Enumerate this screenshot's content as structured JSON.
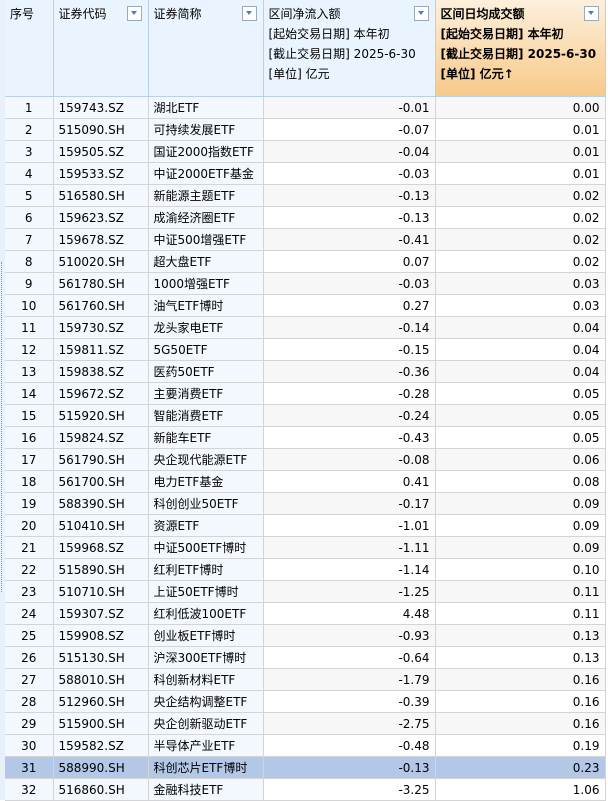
{
  "headers": {
    "seq": "序号",
    "code": "证券代码",
    "name": "证券简称",
    "inflow": [
      "区间净流入额",
      "[起始交易日期] 本年初",
      "[截止交易日期] 2025-6-30",
      "[单位] 亿元"
    ],
    "avg_turnover": [
      "区间日均成交额",
      "[起始交易日期] 本年初",
      "[截止交易日期] 2025-6-30",
      "[单位] 亿元↑"
    ]
  },
  "selected_row": 31,
  "colors": {
    "selected": "#b3c7e6",
    "sorted_header": "#f8c98a"
  },
  "rows": [
    {
      "seq": "1",
      "code": "159743.SZ",
      "name": "湖北ETF",
      "inflow": "-0.01",
      "avg": "0.00"
    },
    {
      "seq": "2",
      "code": "515090.SH",
      "name": "可持续发展ETF",
      "inflow": "-0.07",
      "avg": "0.01"
    },
    {
      "seq": "3",
      "code": "159505.SZ",
      "name": "国证2000指数ETF",
      "inflow": "-0.04",
      "avg": "0.01"
    },
    {
      "seq": "4",
      "code": "159533.SZ",
      "name": "中证2000ETF基金",
      "inflow": "-0.03",
      "avg": "0.01"
    },
    {
      "seq": "5",
      "code": "516580.SH",
      "name": "新能源主题ETF",
      "inflow": "-0.13",
      "avg": "0.02"
    },
    {
      "seq": "6",
      "code": "159623.SZ",
      "name": "成渝经济圈ETF",
      "inflow": "-0.13",
      "avg": "0.02"
    },
    {
      "seq": "7",
      "code": "159678.SZ",
      "name": "中证500增强ETF",
      "inflow": "-0.41",
      "avg": "0.02"
    },
    {
      "seq": "8",
      "code": "510020.SH",
      "name": "超大盘ETF",
      "inflow": "0.07",
      "avg": "0.02"
    },
    {
      "seq": "9",
      "code": "561780.SH",
      "name": "1000增强ETF",
      "inflow": "-0.03",
      "avg": "0.03"
    },
    {
      "seq": "10",
      "code": "561760.SH",
      "name": "油气ETF博时",
      "inflow": "0.27",
      "avg": "0.03"
    },
    {
      "seq": "11",
      "code": "159730.SZ",
      "name": "龙头家电ETF",
      "inflow": "-0.14",
      "avg": "0.04"
    },
    {
      "seq": "12",
      "code": "159811.SZ",
      "name": "5G50ETF",
      "inflow": "-0.15",
      "avg": "0.04"
    },
    {
      "seq": "13",
      "code": "159838.SZ",
      "name": "医药50ETF",
      "inflow": "-0.36",
      "avg": "0.04"
    },
    {
      "seq": "14",
      "code": "159672.SZ",
      "name": "主要消费ETF",
      "inflow": "-0.28",
      "avg": "0.05"
    },
    {
      "seq": "15",
      "code": "515920.SH",
      "name": "智能消费ETF",
      "inflow": "-0.24",
      "avg": "0.05"
    },
    {
      "seq": "16",
      "code": "159824.SZ",
      "name": "新能车ETF",
      "inflow": "-0.43",
      "avg": "0.05"
    },
    {
      "seq": "17",
      "code": "561790.SH",
      "name": "央企现代能源ETF",
      "inflow": "-0.08",
      "avg": "0.06"
    },
    {
      "seq": "18",
      "code": "561700.SH",
      "name": "电力ETF基金",
      "inflow": "0.41",
      "avg": "0.08"
    },
    {
      "seq": "19",
      "code": "588390.SH",
      "name": "科创创业50ETF",
      "inflow": "-0.17",
      "avg": "0.09"
    },
    {
      "seq": "20",
      "code": "510410.SH",
      "name": "资源ETF",
      "inflow": "-1.01",
      "avg": "0.09"
    },
    {
      "seq": "21",
      "code": "159968.SZ",
      "name": "中证500ETF博时",
      "inflow": "-1.11",
      "avg": "0.09"
    },
    {
      "seq": "22",
      "code": "515890.SH",
      "name": "红利ETF博时",
      "inflow": "-1.14",
      "avg": "0.10"
    },
    {
      "seq": "23",
      "code": "510710.SH",
      "name": "上证50ETF博时",
      "inflow": "-1.25",
      "avg": "0.11"
    },
    {
      "seq": "24",
      "code": "159307.SZ",
      "name": "红利低波100ETF",
      "inflow": "4.48",
      "avg": "0.11"
    },
    {
      "seq": "25",
      "code": "159908.SZ",
      "name": "创业板ETF博时",
      "inflow": "-0.93",
      "avg": "0.13"
    },
    {
      "seq": "26",
      "code": "515130.SH",
      "name": "沪深300ETF博时",
      "inflow": "-0.64",
      "avg": "0.13"
    },
    {
      "seq": "27",
      "code": "588010.SH",
      "name": "科创新材料ETF",
      "inflow": "-1.79",
      "avg": "0.16"
    },
    {
      "seq": "28",
      "code": "512960.SH",
      "name": "央企结构调整ETF",
      "inflow": "-0.39",
      "avg": "0.16"
    },
    {
      "seq": "29",
      "code": "515900.SH",
      "name": "央企创新驱动ETF",
      "inflow": "-2.75",
      "avg": "0.16"
    },
    {
      "seq": "30",
      "code": "159582.SZ",
      "name": "半导体产业ETF",
      "inflow": "-0.48",
      "avg": "0.19"
    },
    {
      "seq": "31",
      "code": "588990.SH",
      "name": "科创芯片ETF博时",
      "inflow": "-0.13",
      "avg": "0.23"
    },
    {
      "seq": "32",
      "code": "516860.SH",
      "name": "金融科技ETF",
      "inflow": "-3.25",
      "avg": "1.06"
    }
  ]
}
